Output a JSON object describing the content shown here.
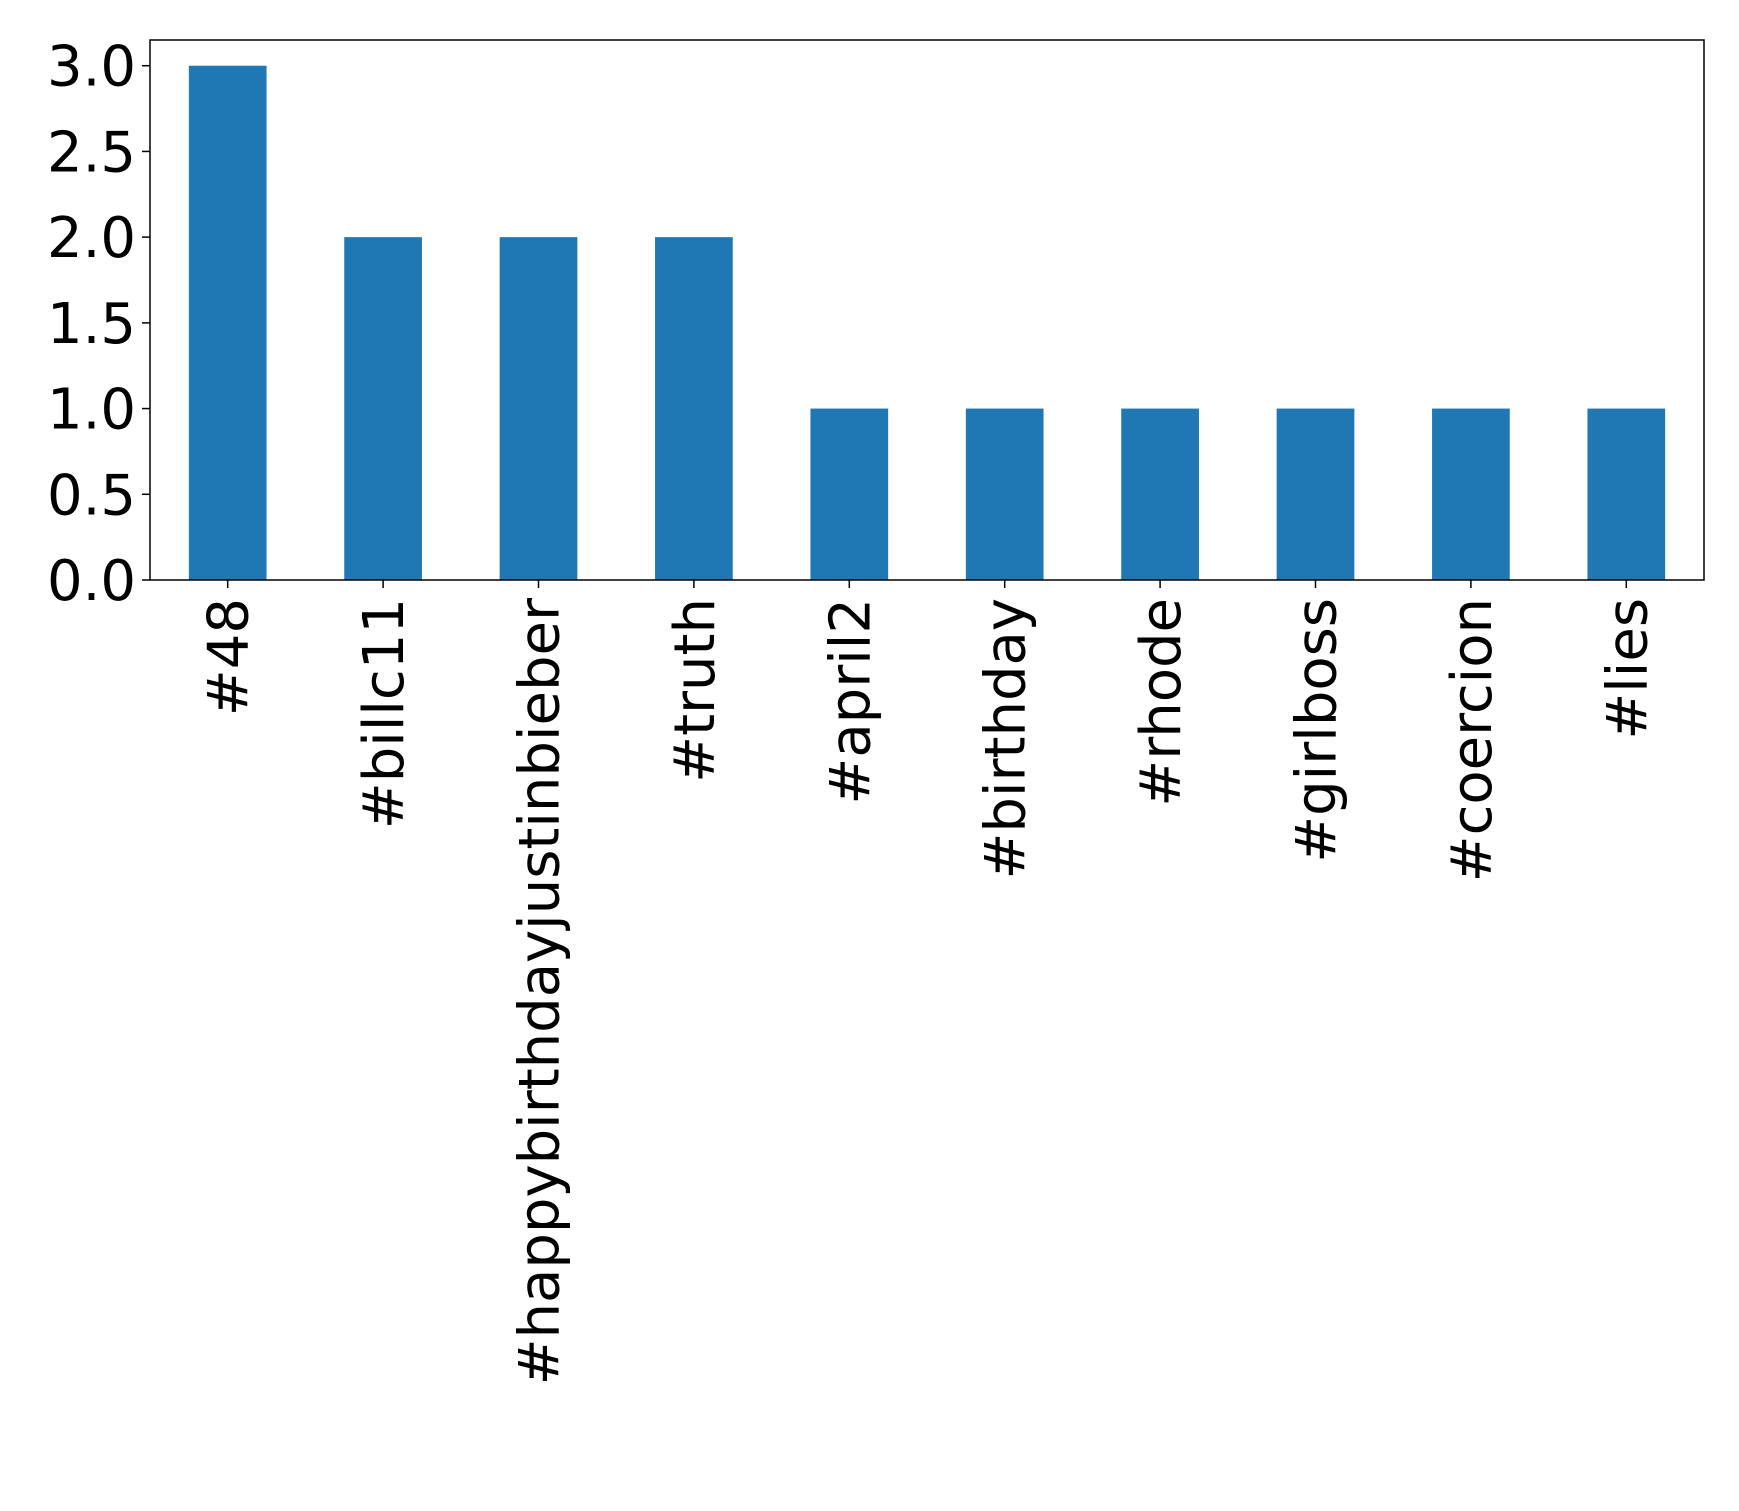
{
  "chart_data": {
    "type": "bar",
    "title": "",
    "xlabel": "",
    "ylabel": "",
    "categories": [
      "#48",
      "#billc11",
      "#happybirthdayjustinbieber",
      "#truth",
      "#april2",
      "#birthday",
      "#rhode",
      "#girlboss",
      "#coercion",
      "#lies"
    ],
    "values": [
      3,
      2,
      2,
      2,
      1,
      1,
      1,
      1,
      1,
      1
    ],
    "ylim": [
      0,
      3.15
    ],
    "yticks": [
      "0.0",
      "0.5",
      "1.0",
      "1.5",
      "2.0",
      "2.5",
      "3.0"
    ],
    "grid": false,
    "legend": "none",
    "bar_color": "#1f77b4"
  }
}
